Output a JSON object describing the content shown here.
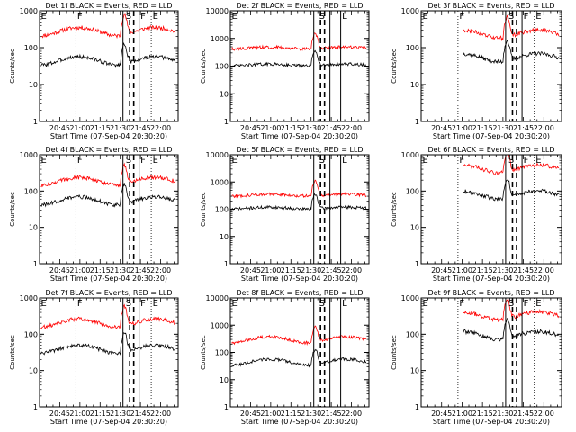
{
  "figure": {
    "xlabel": "Start Time (07-Sep-04 20:30:20)",
    "ylabel": "Counts/sec",
    "x_tick_labels": [
      "20:45",
      "21:00",
      "21:15",
      "21:30",
      "21:45",
      "22:00"
    ],
    "y_tick_labels": [
      "1",
      "10",
      "100",
      "1000",
      "10000"
    ],
    "colors": {
      "events": "#000000",
      "lld": "#ff0000",
      "axes": "#000000"
    }
  },
  "chart_data": [
    {
      "type": "line",
      "title": "Det 1f BLACK = Events, RED = LLD",
      "ylim": [
        1,
        1000
      ],
      "xlim": [
        "20:30",
        "22:13"
      ],
      "y_scale": "log",
      "series": [
        {
          "name": "BLACK = Events",
          "values": []
        },
        {
          "name": "RED = LLD",
          "values": []
        }
      ],
      "markers": [
        "E",
        "F",
        "S",
        "F",
        "E"
      ]
    },
    {
      "type": "line",
      "title": "Det 2f BLACK = Events, RED = LLD",
      "ylim": [
        1,
        10000
      ],
      "xlim": [
        "20:30",
        "22:13"
      ],
      "y_scale": "log",
      "series": [
        {
          "name": "BLACK = Events",
          "values": []
        },
        {
          "name": "RED = LLD",
          "values": []
        }
      ],
      "markers": [
        "E",
        "S",
        "L"
      ]
    },
    {
      "type": "line",
      "title": "Det 3f BLACK = Events, RED = LLD",
      "ylim": [
        1,
        1000
      ],
      "xlim": [
        "20:30",
        "22:13"
      ],
      "y_scale": "log",
      "series": [
        {
          "name": "BLACK = Events",
          "values": []
        },
        {
          "name": "RED = LLD",
          "values": []
        }
      ],
      "markers": [
        "E",
        "F",
        "S",
        "F",
        "E"
      ]
    },
    {
      "type": "line",
      "title": "Det 4f BLACK = Events, RED = LLD",
      "ylim": [
        1,
        1000
      ],
      "xlim": [
        "20:30",
        "22:13"
      ],
      "y_scale": "log",
      "series": [
        {
          "name": "BLACK = Events",
          "values": []
        },
        {
          "name": "RED = LLD",
          "values": []
        }
      ],
      "markers": [
        "E",
        "F",
        "S",
        "F",
        "E"
      ]
    },
    {
      "type": "line",
      "title": "Det 5f BLACK = Events, RED = LLD",
      "ylim": [
        1,
        10000
      ],
      "xlim": [
        "20:30",
        "22:13"
      ],
      "y_scale": "log",
      "series": [
        {
          "name": "BLACK = Events",
          "values": []
        },
        {
          "name": "RED = LLD",
          "values": []
        }
      ],
      "markers": [
        "E",
        "S",
        "L"
      ]
    },
    {
      "type": "line",
      "title": "Det 6f BLACK = Events, RED = LLD",
      "ylim": [
        1,
        1000
      ],
      "xlim": [
        "20:30",
        "22:13"
      ],
      "y_scale": "log",
      "series": [
        {
          "name": "BLACK = Events",
          "values": []
        },
        {
          "name": "RED = LLD",
          "values": []
        }
      ],
      "markers": [
        "E",
        "F",
        "S",
        "F",
        "E"
      ]
    },
    {
      "type": "line",
      "title": "Det 7f BLACK = Events, RED = LLD",
      "ylim": [
        1,
        1000
      ],
      "xlim": [
        "20:30",
        "22:13"
      ],
      "y_scale": "log",
      "series": [
        {
          "name": "BLACK = Events",
          "values": []
        },
        {
          "name": "RED = LLD",
          "values": []
        }
      ],
      "markers": [
        "E",
        "F",
        "S",
        "F",
        "E"
      ]
    },
    {
      "type": "line",
      "title": "Det 8f BLACK = Events, RED = LLD",
      "ylim": [
        1,
        10000
      ],
      "xlim": [
        "20:30",
        "22:13"
      ],
      "y_scale": "log",
      "series": [
        {
          "name": "BLACK = Events",
          "values": []
        },
        {
          "name": "RED = LLD",
          "values": []
        }
      ],
      "markers": [
        "E",
        "S",
        "L"
      ]
    },
    {
      "type": "line",
      "title": "Det 9f BLACK = Events, RED = LLD",
      "ylim": [
        1,
        1000
      ],
      "xlim": [
        "20:30",
        "22:13"
      ],
      "y_scale": "log",
      "series": [
        {
          "name": "BLACK = Events",
          "values": []
        },
        {
          "name": "RED = LLD",
          "values": []
        }
      ],
      "markers": [
        "E",
        "F",
        "S",
        "F",
        "E"
      ]
    }
  ]
}
